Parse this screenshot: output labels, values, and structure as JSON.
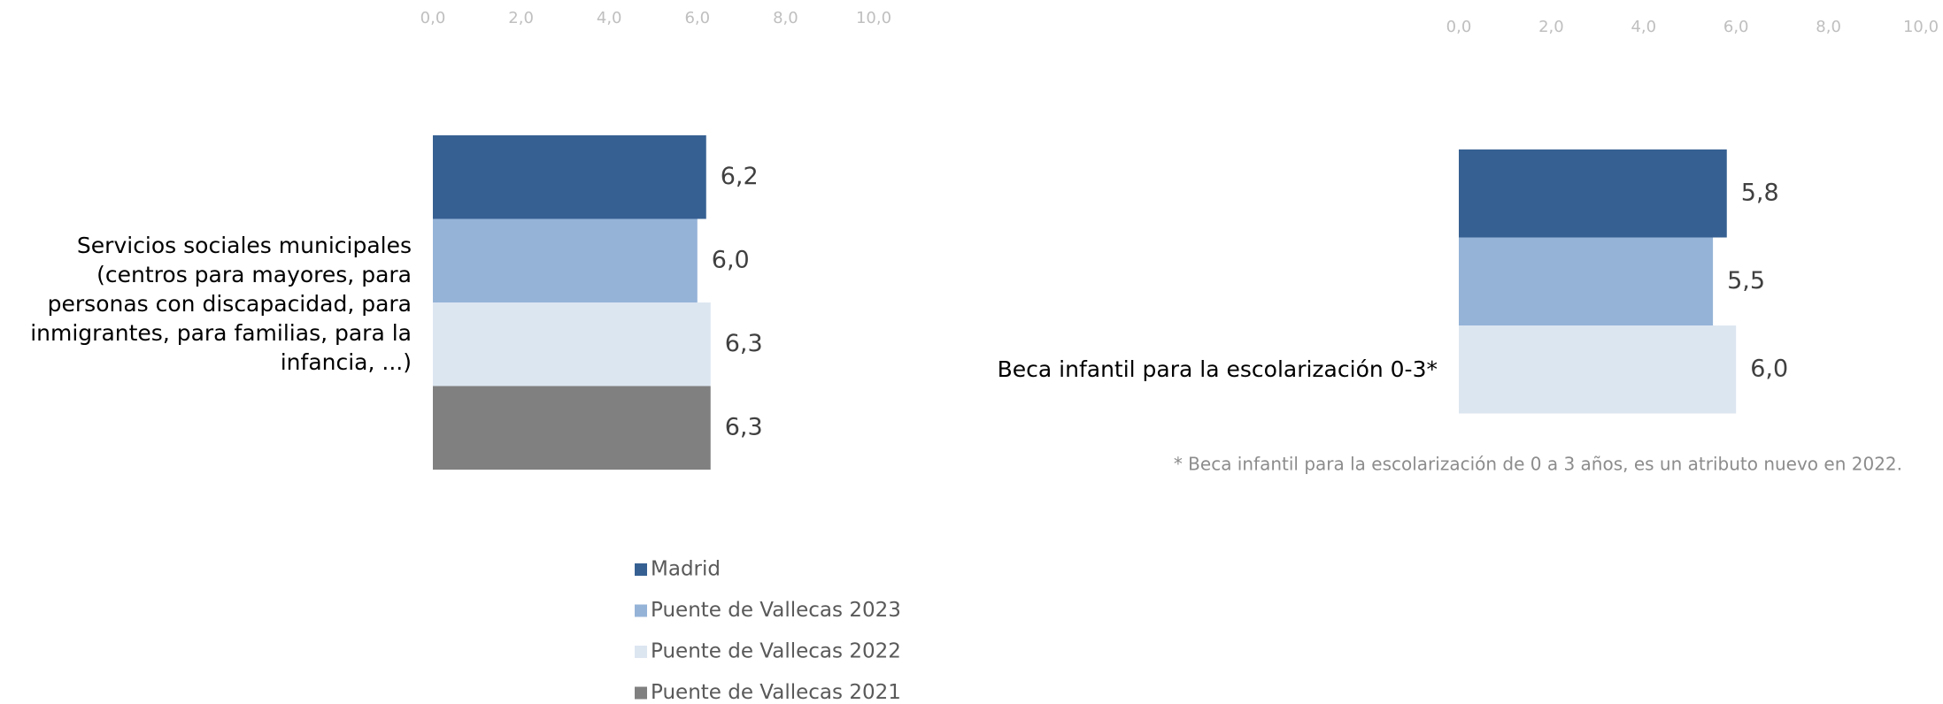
{
  "chart_data": [
    {
      "type": "bar",
      "orientation": "horizontal",
      "categories": [
        "Servicios sociales municipales (centros para mayores, para personas con discapacidad, para inmigrantes, para familias, para la infancia, ...)"
      ],
      "series": [
        {
          "name": "Madrid",
          "color": "#366092",
          "values": [
            6.2
          ],
          "value_labels": [
            "6,2"
          ]
        },
        {
          "name": "Puente de Vallecas 2023",
          "color": "#95b3d7",
          "values": [
            6.0
          ],
          "value_labels": [
            "6,0"
          ]
        },
        {
          "name": "Puente de Vallecas 2022",
          "color": "#dce6f1",
          "values": [
            6.3
          ],
          "value_labels": [
            "6,3"
          ]
        },
        {
          "name": "Puente de Vallecas 2021",
          "color": "#808080",
          "values": [
            6.3
          ],
          "value_labels": [
            "6,3"
          ]
        }
      ],
      "xlim": [
        0,
        10
      ],
      "xticks": [
        {
          "value": 0,
          "label": "0,0"
        },
        {
          "value": 2,
          "label": "2,0"
        },
        {
          "value": 4,
          "label": "4,0"
        },
        {
          "value": 6,
          "label": "6,0"
        },
        {
          "value": 8,
          "label": "8,0"
        },
        {
          "value": 10,
          "label": "10,0"
        }
      ],
      "legend": "bottom"
    },
    {
      "type": "bar",
      "orientation": "horizontal",
      "categories": [
        "Beca infantil para la escolarización 0-3*"
      ],
      "series": [
        {
          "color": "#366092",
          "values": [
            5.8
          ],
          "value_labels": [
            "5,8"
          ]
        },
        {
          "color": "#95b3d7",
          "values": [
            5.5
          ],
          "value_labels": [
            "5,5"
          ]
        },
        {
          "color": "#dce6f1",
          "values": [
            6.0
          ],
          "value_labels": [
            "6,0"
          ]
        }
      ],
      "xlim": [
        0,
        10
      ],
      "xticks": [
        {
          "value": 0,
          "label": "0,0"
        },
        {
          "value": 2,
          "label": "2,0"
        },
        {
          "value": 4,
          "label": "4,0"
        },
        {
          "value": 6,
          "label": "6,0"
        },
        {
          "value": 8,
          "label": "8,0"
        },
        {
          "value": 10,
          "label": "10,0"
        }
      ],
      "note": "* Beca infantil para la escolarización de 0 a 3 años, es un atributo nuevo en 2022."
    }
  ]
}
